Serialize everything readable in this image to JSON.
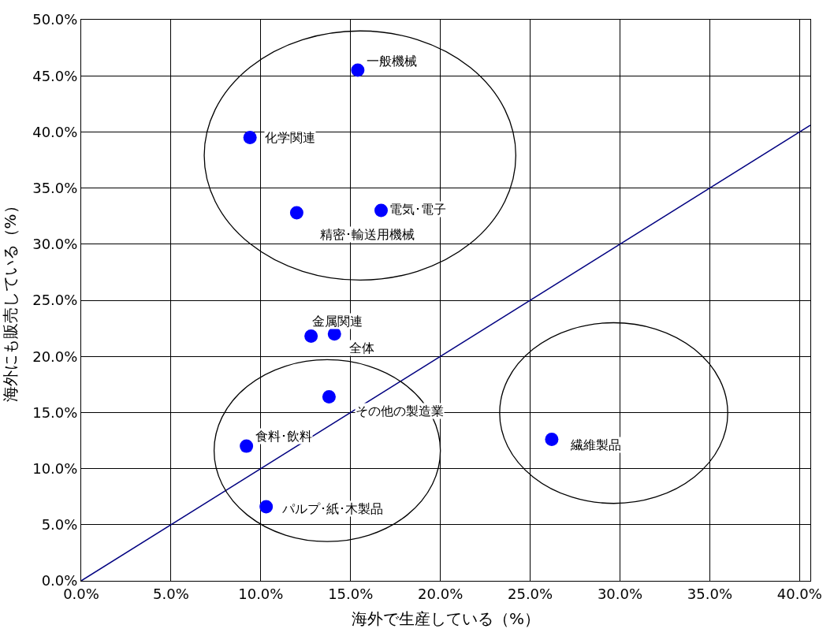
{
  "chart_data": {
    "type": "scatter",
    "xlabel": "海外で生産している（%）",
    "ylabel": "海外にも販売している（%）",
    "xlim": [
      0,
      40.6
    ],
    "ylim": [
      0,
      50
    ],
    "xticks": [
      {
        "value": 0,
        "label": "0.0%"
      },
      {
        "value": 5,
        "label": "5.0%"
      },
      {
        "value": 10,
        "label": "10.0%"
      },
      {
        "value": 15,
        "label": "15.0%"
      },
      {
        "value": 20,
        "label": "20.0%"
      },
      {
        "value": 25,
        "label": "25.0%"
      },
      {
        "value": 30,
        "label": "30.0%"
      },
      {
        "value": 35,
        "label": "35.0%"
      },
      {
        "value": 40,
        "label": "40.0%"
      }
    ],
    "yticks": [
      {
        "value": 0,
        "label": "0.0%"
      },
      {
        "value": 5,
        "label": "5.0%"
      },
      {
        "value": 10,
        "label": "10.0%"
      },
      {
        "value": 15,
        "label": "15.0%"
      },
      {
        "value": 20,
        "label": "20.0%"
      },
      {
        "value": 25,
        "label": "25.0%"
      },
      {
        "value": 30,
        "label": "30.0%"
      },
      {
        "value": 35,
        "label": "35.0%"
      },
      {
        "value": 40,
        "label": "40.0%"
      },
      {
        "value": 45,
        "label": "45.0%"
      },
      {
        "value": 50,
        "label": "50.0%"
      }
    ],
    "grid": true,
    "marker": "circle",
    "series": [
      {
        "color": "#0000ff",
        "x": [
          15.4,
          9.4,
          16.7,
          12.0,
          12.8,
          14.1,
          13.8,
          9.2,
          10.3,
          26.2
        ],
        "values": [
          45.5,
          39.5,
          33.0,
          32.8,
          21.8,
          22.0,
          16.4,
          12.0,
          6.6,
          12.6
        ]
      },
      {
        "type": "line",
        "color": "#000080",
        "marker": "none",
        "x": [
          0,
          40.6
        ],
        "values": [
          0,
          40.6
        ]
      }
    ],
    "annotations": [
      {
        "text": "一般機械",
        "x": 15.4,
        "y": 45.5
      },
      {
        "text": "化学関連",
        "x": 9.4,
        "y": 39.5
      },
      {
        "text": "電気･電子",
        "x": 16.7,
        "y": 33.0
      },
      {
        "text": "精密･輸送用機械",
        "x": 12.0,
        "y": 32.8
      },
      {
        "text": "金属関連",
        "x": 12.8,
        "y": 21.8
      },
      {
        "text": "全体",
        "x": 14.1,
        "y": 22.0
      },
      {
        "text": "その他の製造業",
        "x": 13.8,
        "y": 16.4
      },
      {
        "text": "食料･飲料",
        "x": 9.2,
        "y": 12.0
      },
      {
        "text": "パルプ･紙･木製品",
        "x": 10.3,
        "y": 6.6
      },
      {
        "text": "繊維製品",
        "x": 26.2,
        "y": 12.6
      }
    ]
  }
}
